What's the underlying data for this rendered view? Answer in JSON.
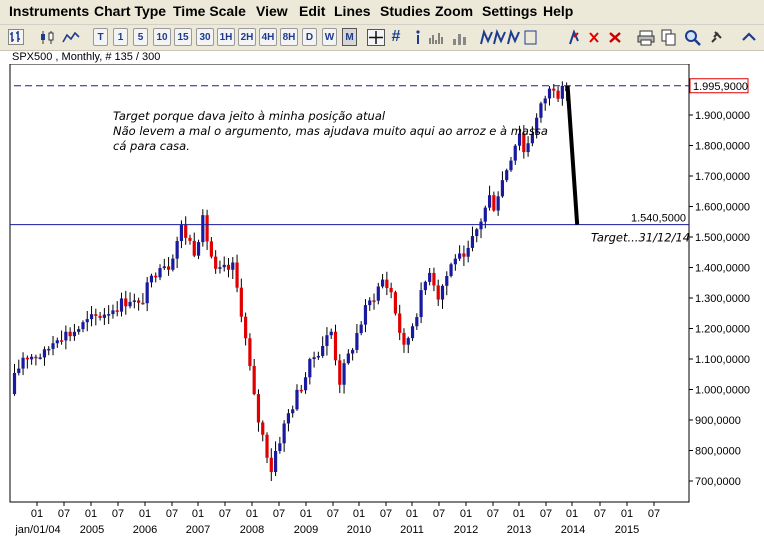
{
  "menu": {
    "items": [
      "Instruments",
      "Chart Type",
      "Time Scale",
      "View",
      "Edit",
      "Lines",
      "Studies",
      "Zoom",
      "Settings",
      "Help"
    ]
  },
  "toolbar": {
    "scale_buttons": [
      "T",
      "1",
      "5",
      "10",
      "15",
      "30",
      "1H",
      "2H",
      "4H",
      "8H",
      "D",
      "W",
      "M"
    ],
    "active_scale": "M",
    "hash_label": "#",
    "icons": [
      "bar-chart-icon",
      "candlestick-icon",
      "line-chart-icon",
      "crosshair-icon",
      "info-icon",
      "tick-volume-icon",
      "histogram-icon",
      "draw-tools-icon",
      "delete-icon",
      "print-icon",
      "copy-icon",
      "zoom-icon",
      "pin-icon",
      "expand-icon"
    ]
  },
  "chart": {
    "label": "SPX500 , Monthly, # 135 / 300",
    "current_price_label": "1.995,9000",
    "target_price_label": "1.540,5000",
    "target_text": "Target...31/12/14",
    "annotation_lines": [
      "Target porque dava jeito à minha posição atual",
      "Não levem a mal o argumento, mas ajudava muito aqui ao arroz e à massa",
      "cá para casa."
    ]
  },
  "chart_data": {
    "type": "candlestick",
    "series_name": "SPX500",
    "timeframe": "Monthly",
    "y_tick_labels": [
      "700,0000",
      "800,0000",
      "900,0000",
      "1.000,0000",
      "1.100,0000",
      "1.200,0000",
      "1.300,0000",
      "1.400,0000",
      "1.500,0000",
      "1.600,0000",
      "1.700,0000",
      "1.800,0000",
      "1.900,0000"
    ],
    "y_ticks": [
      700,
      800,
      900,
      1000,
      1100,
      1200,
      1300,
      1400,
      1500,
      1600,
      1700,
      1800,
      1900
    ],
    "ylim": [
      670,
      2000
    ],
    "x_tick_labels": [
      "01",
      "07",
      "01",
      "07",
      "01",
      "07",
      "01",
      "07",
      "01",
      "07",
      "01",
      "07",
      "01",
      "07",
      "01",
      "07",
      "01",
      "07",
      "01",
      "07",
      "01",
      "07",
      "01",
      "07"
    ],
    "year_labels": [
      "jan/01/04",
      "2005",
      "2006",
      "2007",
      "2008",
      "2009",
      "2010",
      "2011",
      "2012",
      "2013",
      "2014",
      "2015"
    ],
    "horizontal_lines": [
      {
        "value": 1995.9,
        "style": "dashed"
      },
      {
        "value": 1540.5,
        "style": "solid"
      }
    ],
    "target_line": {
      "from_date": "2014-10",
      "from_value": 1995,
      "to_date": "2014-12-31",
      "to_value": 1540.5
    },
    "colors": {
      "up": "#1a1aa0",
      "down": "#e00000",
      "hline": "#1a1aa0",
      "target": "#000000"
    },
    "anchors": [
      [
        "2004-01",
        1000
      ],
      [
        "2004-04",
        1110
      ],
      [
        "2004-09",
        1115
      ],
      [
        "2004-12",
        1180
      ],
      [
        "2005-03",
        1185
      ],
      [
        "2005-08",
        1230
      ],
      [
        "2005-12",
        1260
      ],
      [
        "2006-05",
        1300
      ],
      [
        "2006-07",
        1270
      ],
      [
        "2006-12",
        1420
      ],
      [
        "2007-02",
        1410
      ],
      [
        "2007-05",
        1530
      ],
      [
        "2007-08",
        1460
      ],
      [
        "2007-10",
        1550
      ],
      [
        "2008-01",
        1380
      ],
      [
        "2008-05",
        1400
      ],
      [
        "2008-07",
        1260
      ],
      [
        "2008-10",
        970
      ],
      [
        "2008-11",
        900
      ],
      [
        "2009-02",
        740
      ],
      [
        "2009-03",
        800
      ],
      [
        "2009-06",
        920
      ],
      [
        "2009-12",
        1110
      ],
      [
        "2010-04",
        1190
      ],
      [
        "2010-06",
        1030
      ],
      [
        "2010-12",
        1260
      ],
      [
        "2011-04",
        1360
      ],
      [
        "2011-06",
        1320
      ],
      [
        "2011-09",
        1130
      ],
      [
        "2011-12",
        1260
      ],
      [
        "2012-03",
        1400
      ],
      [
        "2012-05",
        1310
      ],
      [
        "2012-09",
        1440
      ],
      [
        "2012-11",
        1415
      ],
      [
        "2013-05",
        1630
      ],
      [
        "2013-06",
        1606
      ],
      [
        "2013-12",
        1850
      ],
      [
        "2014-01",
        1780
      ],
      [
        "2014-06",
        1960
      ],
      [
        "2014-08",
        2000
      ],
      [
        "2014-09",
        1975
      ]
    ]
  }
}
